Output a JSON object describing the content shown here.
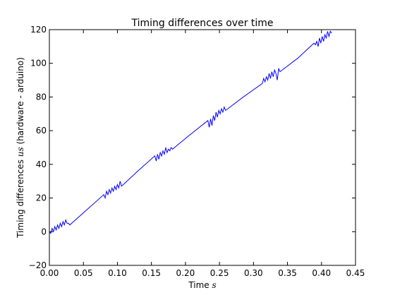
{
  "chart_data": {
    "type": "line",
    "title": "Timing differences over time",
    "xlabel": "Time ",
    "xlabel_math": "s",
    "ylabel": "Timing differences ",
    "ylabel_math": "us",
    "ylabel_suffix": " (hardware - arduino)",
    "xlim": [
      0.0,
      0.45
    ],
    "ylim": [
      -20,
      120
    ],
    "xticks": [
      0.0,
      0.05,
      0.1,
      0.15,
      0.2,
      0.25,
      0.3,
      0.35,
      0.4,
      0.45
    ],
    "xtick_labels": [
      "0.00",
      "0.05",
      "0.10",
      "0.15",
      "0.20",
      "0.25",
      "0.30",
      "0.35",
      "0.40",
      "0.45"
    ],
    "yticks": [
      -20,
      0,
      20,
      40,
      60,
      80,
      100,
      120
    ],
    "ytick_labels": [
      "−20",
      "0",
      "20",
      "40",
      "60",
      "80",
      "100",
      "120"
    ],
    "grid": false,
    "series": [
      {
        "color": "#0000ff",
        "x": [
          0.0,
          0.002,
          0.004,
          0.006,
          0.008,
          0.01,
          0.012,
          0.014,
          0.016,
          0.018,
          0.02,
          0.022,
          0.024,
          0.026,
          0.028,
          0.03,
          0.055,
          0.08,
          0.082,
          0.084,
          0.086,
          0.088,
          0.09,
          0.092,
          0.094,
          0.096,
          0.098,
          0.1,
          0.102,
          0.104,
          0.106,
          0.13,
          0.155,
          0.157,
          0.159,
          0.161,
          0.163,
          0.165,
          0.167,
          0.169,
          0.171,
          0.173,
          0.175,
          0.177,
          0.179,
          0.181,
          0.205,
          0.233,
          0.235,
          0.237,
          0.239,
          0.241,
          0.243,
          0.245,
          0.247,
          0.249,
          0.251,
          0.253,
          0.255,
          0.257,
          0.259,
          0.285,
          0.313,
          0.315,
          0.317,
          0.319,
          0.321,
          0.323,
          0.325,
          0.327,
          0.329,
          0.331,
          0.333,
          0.335,
          0.337,
          0.339,
          0.365,
          0.389,
          0.391,
          0.393,
          0.395,
          0.397,
          0.399,
          0.401,
          0.403,
          0.405,
          0.407,
          0.409,
          0.411,
          0.413,
          0.415
        ],
        "y": [
          0,
          -1,
          2,
          0,
          3,
          1,
          4,
          2,
          5,
          3,
          6,
          4,
          7,
          5,
          5,
          4,
          13,
          22,
          20,
          24,
          22,
          25,
          23,
          26,
          24,
          27,
          25,
          28,
          26,
          30,
          27,
          36,
          45,
          42,
          46,
          43,
          47,
          45,
          48,
          46,
          50,
          47,
          49,
          48,
          50,
          49,
          57,
          66,
          62,
          67,
          63,
          69,
          66,
          71,
          68,
          72,
          70,
          73,
          71,
          74,
          72,
          80,
          88,
          91,
          89,
          92,
          90,
          94,
          91,
          95,
          92,
          96,
          94,
          90,
          97,
          95,
          103,
          112,
          111,
          113,
          110,
          115,
          112,
          116,
          113,
          117,
          115,
          119,
          116,
          119,
          118
        ]
      }
    ]
  }
}
